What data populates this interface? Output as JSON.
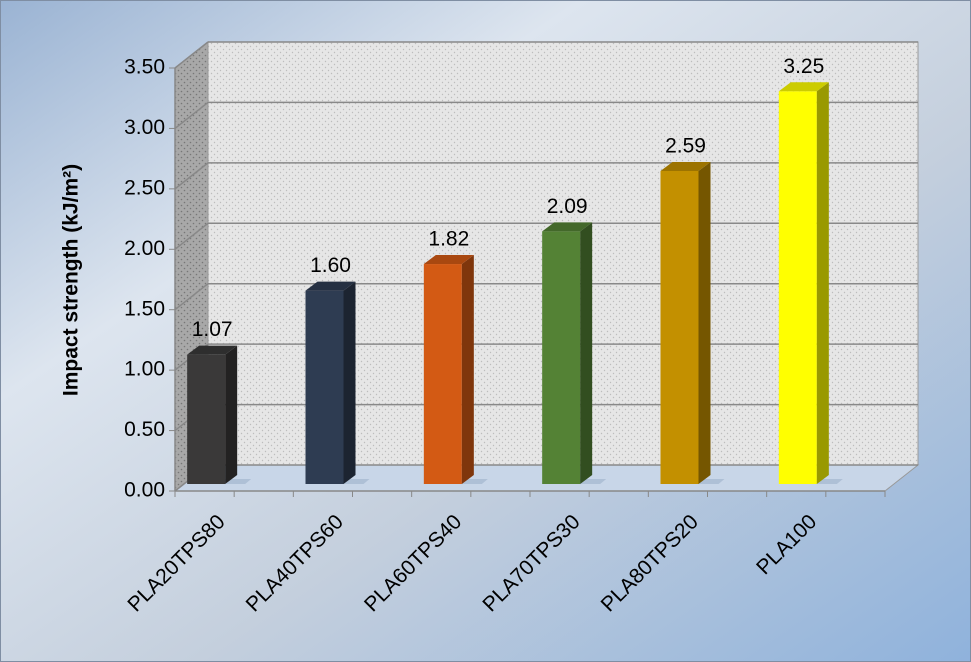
{
  "chart_data": {
    "type": "bar3d",
    "y_label": "Impact strength (kJ/m²)",
    "categories": [
      "PLA20TPS80",
      "PLA40TPS60",
      "PLA60TPS40",
      "PLA70TPS30",
      "PLA80TPS20",
      "PLA100"
    ],
    "values": [
      1.07,
      1.6,
      1.82,
      2.09,
      2.59,
      3.25
    ],
    "value_labels": [
      "1.07",
      "1.60",
      "1.82",
      "2.09",
      "2.59",
      "3.25"
    ],
    "colors": [
      "#3a3939",
      "#2e3c52",
      "#d35a14",
      "#548235",
      "#c39000",
      "#ffff00"
    ],
    "ylim": [
      0,
      3.5
    ],
    "yticks": [
      {
        "value": 0,
        "label": "0.00"
      },
      {
        "value": 0.5,
        "label": "0.50"
      },
      {
        "value": 1,
        "label": "1.00"
      },
      {
        "value": 1.5,
        "label": "1.50"
      },
      {
        "value": 2,
        "label": "2.00"
      },
      {
        "value": 2.5,
        "label": "2.50"
      },
      {
        "value": 3,
        "label": "3.00"
      },
      {
        "value": 3.5,
        "label": "3.50"
      }
    ],
    "grid": true
  }
}
